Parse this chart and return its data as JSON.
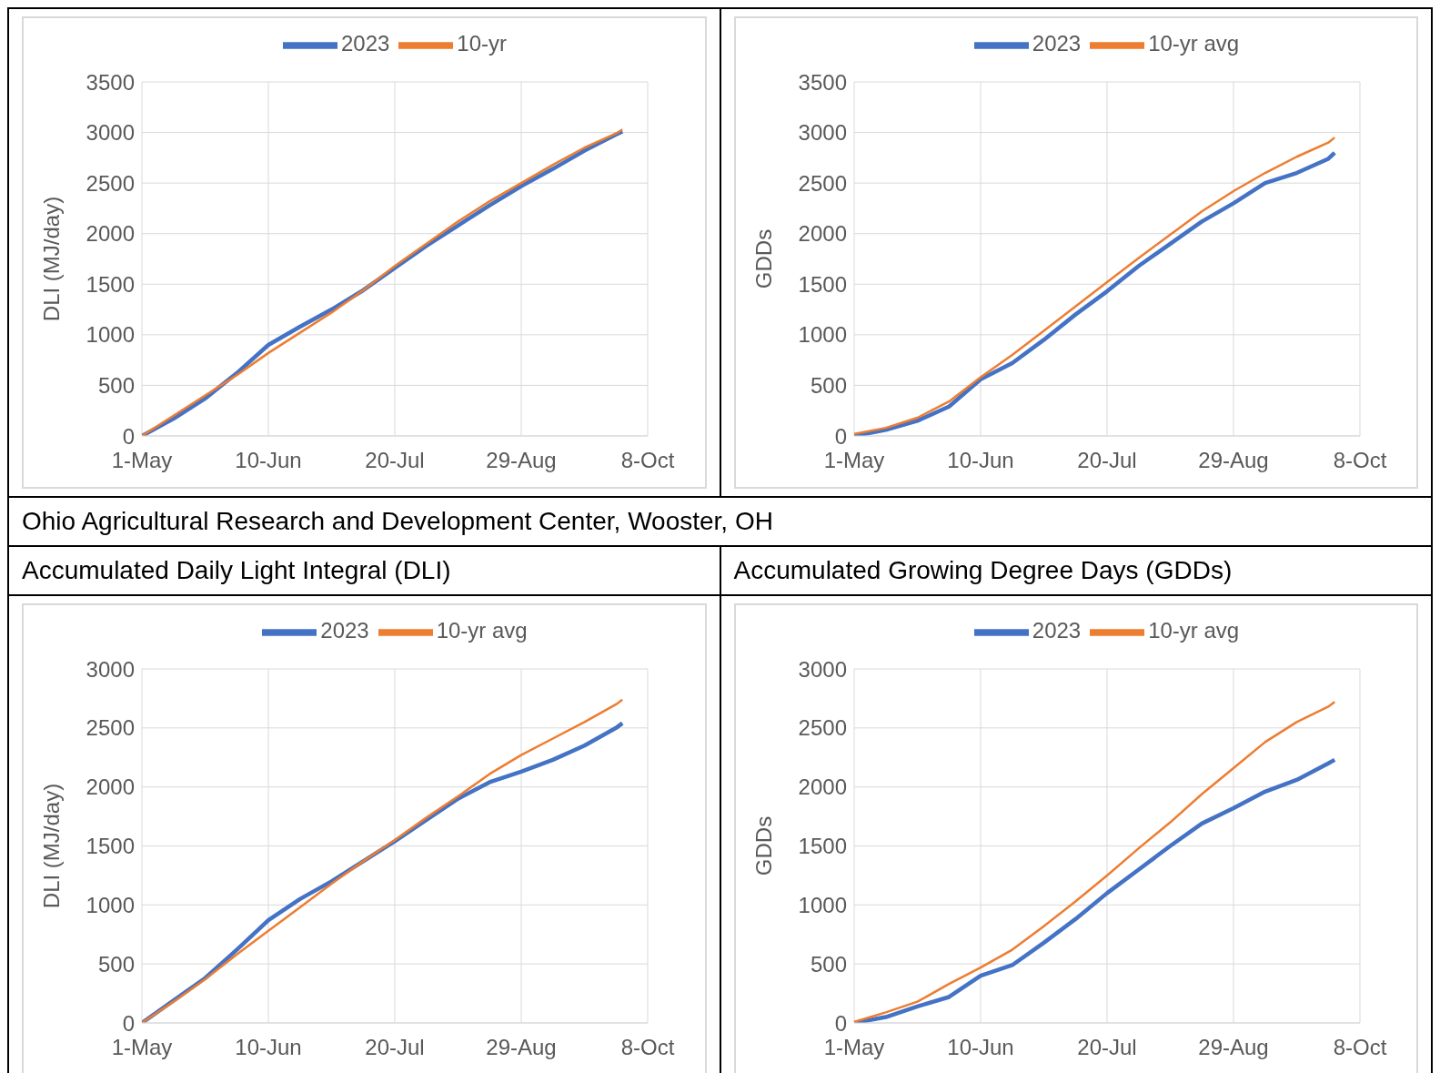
{
  "chart_data": [
    {
      "type": "line",
      "ylabel": "DLI (MJ/day)",
      "x": [
        "--05-01",
        "--05-11",
        "--05-21",
        "--05-31",
        "--06-10",
        "--06-20",
        "--06-30",
        "--07-10",
        "--07-20",
        "--07-30",
        "--08-09",
        "--08-19",
        "--08-29",
        "--09-08",
        "--09-18",
        "--09-28",
        "--09-30"
      ],
      "series": [
        {
          "name": "2023",
          "color": "#4472c4",
          "values": [
            0,
            170,
            370,
            620,
            900,
            1080,
            1250,
            1440,
            1660,
            1880,
            2080,
            2280,
            2470,
            2640,
            2820,
            2980,
            3010
          ]
        },
        {
          "name": "10-yr",
          "color": "#ed7d31",
          "values": [
            0,
            200,
            400,
            600,
            820,
            1020,
            1220,
            1440,
            1680,
            1900,
            2120,
            2320,
            2500,
            2680,
            2850,
            2990,
            3030
          ]
        }
      ],
      "xlim": [
        "--05-01",
        "--10-08"
      ],
      "xticks": [
        {
          "value": "--05-01",
          "label": "1-May"
        },
        {
          "value": "--06-10",
          "label": "10-Jun"
        },
        {
          "value": "--07-20",
          "label": "20-Jul"
        },
        {
          "value": "--08-29",
          "label": "29-Aug"
        },
        {
          "value": "--10-08",
          "label": "8-Oct"
        }
      ],
      "ylim": [
        0,
        3500
      ],
      "yticks": [
        0,
        500,
        1000,
        1500,
        2000,
        2500,
        3000,
        3500
      ],
      "grid": true,
      "legend": "top",
      "marker": "none",
      "line_style": "solid"
    },
    {
      "type": "line",
      "ylabel": "GDDs",
      "x": [
        "--05-01",
        "--05-11",
        "--05-21",
        "--05-31",
        "--06-10",
        "--06-20",
        "--06-30",
        "--07-10",
        "--07-20",
        "--07-30",
        "--08-09",
        "--08-19",
        "--08-29",
        "--09-08",
        "--09-18",
        "--09-28",
        "--09-30"
      ],
      "series": [
        {
          "name": "2023",
          "color": "#4472c4",
          "values": [
            0,
            60,
            150,
            290,
            560,
            720,
            950,
            1200,
            1430,
            1680,
            1900,
            2120,
            2300,
            2500,
            2600,
            2740,
            2800
          ]
        },
        {
          "name": "10-yr avg",
          "color": "#ed7d31",
          "values": [
            20,
            80,
            180,
            340,
            580,
            800,
            1040,
            1280,
            1520,
            1760,
            1990,
            2220,
            2420,
            2600,
            2760,
            2900,
            2950
          ]
        }
      ],
      "xlim": [
        "--05-01",
        "--10-08"
      ],
      "xticks": [
        {
          "value": "--05-01",
          "label": "1-May"
        },
        {
          "value": "--06-10",
          "label": "10-Jun"
        },
        {
          "value": "--07-20",
          "label": "20-Jul"
        },
        {
          "value": "--08-29",
          "label": "29-Aug"
        },
        {
          "value": "--10-08",
          "label": "8-Oct"
        }
      ],
      "ylim": [
        0,
        3500
      ],
      "yticks": [
        0,
        500,
        1000,
        1500,
        2000,
        2500,
        3000,
        3500
      ],
      "grid": true,
      "legend": "top",
      "marker": "none",
      "line_style": "solid"
    },
    {
      "type": "line",
      "title": "Accumulated Daily Light Integral (DLI)",
      "annotations": [
        "Ohio Agricultural Research and Development Center, Wooster, OH"
      ],
      "ylabel": "DLI (MJ/day)",
      "x": [
        "--05-01",
        "--05-11",
        "--05-21",
        "--05-31",
        "--06-10",
        "--06-20",
        "--06-30",
        "--07-10",
        "--07-20",
        "--07-30",
        "--08-09",
        "--08-19",
        "--08-29",
        "--09-08",
        "--09-18",
        "--09-28",
        "--09-30"
      ],
      "series": [
        {
          "name": "2023",
          "color": "#4472c4",
          "values": [
            0,
            190,
            380,
            620,
            870,
            1050,
            1200,
            1370,
            1540,
            1720,
            1900,
            2040,
            2130,
            2230,
            2350,
            2500,
            2540
          ]
        },
        {
          "name": "10-yr avg",
          "color": "#ed7d31",
          "values": [
            0,
            180,
            370,
            580,
            780,
            980,
            1180,
            1370,
            1550,
            1740,
            1920,
            2110,
            2270,
            2410,
            2550,
            2700,
            2740
          ]
        }
      ],
      "xlim": [
        "--05-01",
        "--10-08"
      ],
      "xticks": [
        {
          "value": "--05-01",
          "label": "1-May"
        },
        {
          "value": "--06-10",
          "label": "10-Jun"
        },
        {
          "value": "--07-20",
          "label": "20-Jul"
        },
        {
          "value": "--08-29",
          "label": "29-Aug"
        },
        {
          "value": "--10-08",
          "label": "8-Oct"
        }
      ],
      "ylim": [
        0,
        3000
      ],
      "yticks": [
        0,
        500,
        1000,
        1500,
        2000,
        2500,
        3000
      ],
      "grid": true,
      "legend": "top",
      "marker": "none",
      "line_style": "solid"
    },
    {
      "type": "line",
      "title": "Accumulated Growing Degree Days (GDDs)",
      "ylabel": "GDDs",
      "x": [
        "--05-01",
        "--05-11",
        "--05-21",
        "--05-31",
        "--06-10",
        "--06-20",
        "--06-30",
        "--07-10",
        "--07-20",
        "--07-30",
        "--08-09",
        "--08-19",
        "--08-29",
        "--09-08",
        "--09-18",
        "--09-28",
        "--09-30"
      ],
      "series": [
        {
          "name": "2023",
          "color": "#4472c4",
          "values": [
            0,
            50,
            140,
            220,
            400,
            490,
            680,
            880,
            1100,
            1300,
            1500,
            1690,
            1820,
            1960,
            2060,
            2200,
            2230
          ]
        },
        {
          "name": "10-yr avg",
          "color": "#ed7d31",
          "values": [
            10,
            90,
            180,
            330,
            470,
            620,
            820,
            1030,
            1250,
            1480,
            1700,
            1940,
            2160,
            2380,
            2550,
            2680,
            2720
          ]
        }
      ],
      "xlim": [
        "--05-01",
        "--10-08"
      ],
      "xticks": [
        {
          "value": "--05-01",
          "label": "1-May"
        },
        {
          "value": "--06-10",
          "label": "10-Jun"
        },
        {
          "value": "--07-20",
          "label": "20-Jul"
        },
        {
          "value": "--08-29",
          "label": "29-Aug"
        },
        {
          "value": "--10-08",
          "label": "8-Oct"
        }
      ],
      "ylim": [
        0,
        3000
      ],
      "yticks": [
        0,
        500,
        1000,
        1500,
        2000,
        2500,
        3000
      ],
      "grid": true,
      "legend": "top",
      "marker": "none",
      "line_style": "solid"
    }
  ]
}
